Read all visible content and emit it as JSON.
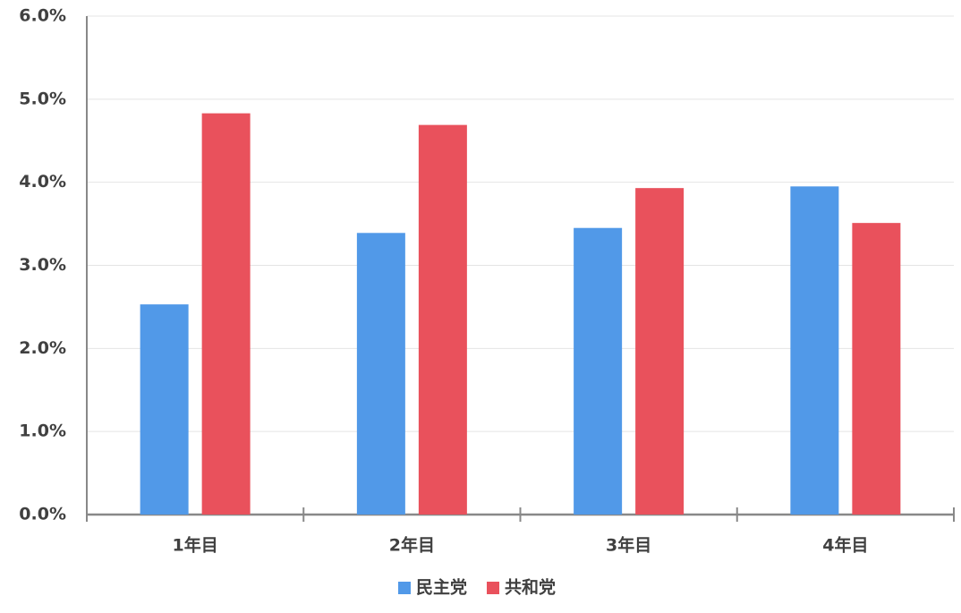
{
  "chart_data": {
    "type": "bar",
    "categories": [
      "1年目",
      "2年目",
      "3年目",
      "4年目"
    ],
    "series": [
      {
        "name": "民主党",
        "color": "#5199e8",
        "values": [
          2.53,
          3.39,
          3.45,
          3.95
        ]
      },
      {
        "name": "共和党",
        "color": "#e9515c",
        "values": [
          4.83,
          4.69,
          3.93,
          3.51
        ]
      }
    ],
    "ylim": [
      0,
      6
    ],
    "yticks": [
      {
        "value": 0,
        "label": "0.0%"
      },
      {
        "value": 1,
        "label": "1.0%"
      },
      {
        "value": 2,
        "label": "2.0%"
      },
      {
        "value": 3,
        "label": "3.0%"
      },
      {
        "value": 4,
        "label": "4.0%"
      },
      {
        "value": 5,
        "label": "5.0%"
      },
      {
        "value": 6,
        "label": "6.0%"
      }
    ],
    "grid": true,
    "legend": "bottom"
  }
}
